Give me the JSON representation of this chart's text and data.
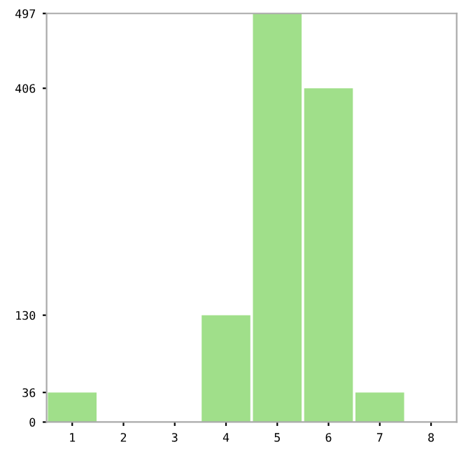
{
  "chart_data": {
    "type": "bar",
    "categories": [
      "1",
      "2",
      "3",
      "4",
      "5",
      "6",
      "7",
      "8"
    ],
    "values": [
      36,
      0,
      0,
      130,
      497,
      406,
      36,
      0
    ],
    "color": "#a0df8a",
    "ylim": [
      0,
      497
    ],
    "yticks": [
      0,
      36,
      130,
      406,
      497
    ],
    "grid": false
  }
}
